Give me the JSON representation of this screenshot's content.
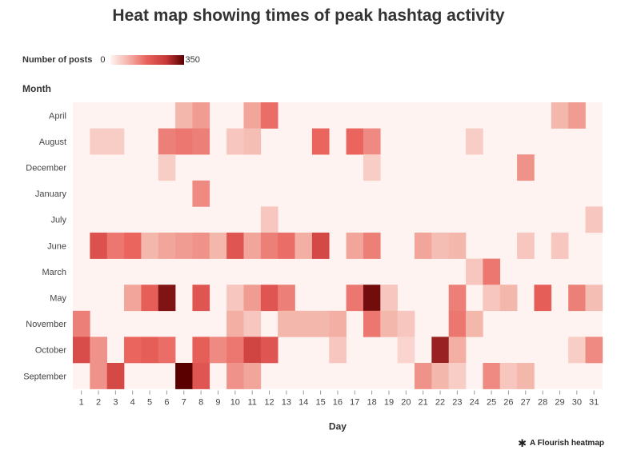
{
  "title": "Heat map showing times of peak hashtag activity",
  "legend": {
    "title": "Number of posts",
    "min": "0",
    "max": "350"
  },
  "footer": {
    "text": "A Flourish heatmap",
    "icon": "asterisk-icon"
  },
  "colors": {
    "empty": "#fff3f1",
    "scale": [
      "#fff3f1",
      "#f3b1a6",
      "#e8605a",
      "#c83a3a",
      "#5a0000"
    ]
  },
  "chart_data": {
    "type": "heatmap",
    "title": "Heat map showing times of peak hashtag activity",
    "xlabel": "Day",
    "ylabel": "Month",
    "value_label": "Number of posts",
    "value_range": [
      0,
      350
    ],
    "x": [
      1,
      2,
      3,
      4,
      5,
      6,
      7,
      8,
      9,
      10,
      11,
      12,
      13,
      14,
      15,
      16,
      17,
      18,
      19,
      20,
      21,
      22,
      23,
      24,
      25,
      26,
      27,
      28,
      29,
      30,
      31
    ],
    "y": [
      "April",
      "August",
      "December",
      "January",
      "July",
      "June",
      "March",
      "May",
      "November",
      "October",
      "September"
    ],
    "values": [
      [
        0,
        0,
        0,
        0,
        0,
        0,
        80,
        110,
        0,
        0,
        100,
        160,
        0,
        0,
        0,
        0,
        0,
        0,
        0,
        0,
        0,
        0,
        0,
        0,
        0,
        0,
        0,
        0,
        80,
        110,
        0
      ],
      [
        0,
        50,
        50,
        0,
        0,
        140,
        150,
        140,
        0,
        60,
        70,
        0,
        0,
        0,
        170,
        0,
        170,
        130,
        0,
        0,
        0,
        0,
        0,
        50,
        0,
        0,
        0,
        0,
        0,
        0,
        0
      ],
      [
        0,
        0,
        0,
        0,
        0,
        50,
        0,
        0,
        0,
        0,
        0,
        0,
        0,
        0,
        0,
        0,
        0,
        50,
        0,
        0,
        0,
        0,
        0,
        0,
        0,
        0,
        120,
        0,
        0,
        0,
        0
      ],
      [
        0,
        0,
        0,
        0,
        0,
        0,
        0,
        130,
        0,
        0,
        0,
        0,
        0,
        0,
        0,
        0,
        0,
        0,
        0,
        0,
        0,
        0,
        0,
        0,
        0,
        0,
        0,
        0,
        0,
        0,
        0
      ],
      [
        0,
        0,
        0,
        0,
        0,
        0,
        0,
        0,
        0,
        0,
        0,
        60,
        0,
        0,
        0,
        0,
        0,
        0,
        0,
        0,
        0,
        0,
        0,
        0,
        0,
        0,
        0,
        0,
        0,
        0,
        60
      ],
      [
        0,
        210,
        150,
        170,
        80,
        100,
        110,
        120,
        80,
        200,
        100,
        140,
        160,
        90,
        230,
        0,
        100,
        140,
        0,
        0,
        100,
        70,
        80,
        0,
        0,
        0,
        60,
        0,
        60,
        0,
        0
      ],
      [
        0,
        0,
        0,
        0,
        0,
        0,
        0,
        0,
        0,
        0,
        0,
        0,
        0,
        0,
        0,
        0,
        0,
        0,
        0,
        0,
        0,
        0,
        0,
        60,
        150,
        0,
        0,
        0,
        0,
        0,
        0
      ],
      [
        0,
        0,
        0,
        100,
        180,
        320,
        0,
        200,
        0,
        60,
        110,
        200,
        140,
        0,
        0,
        0,
        150,
        330,
        60,
        0,
        0,
        0,
        140,
        0,
        60,
        80,
        0,
        180,
        0,
        140,
        70
      ],
      [
        140,
        0,
        0,
        0,
        0,
        0,
        0,
        0,
        0,
        90,
        60,
        0,
        80,
        80,
        80,
        90,
        0,
        150,
        80,
        60,
        0,
        0,
        150,
        80,
        0,
        0,
        0,
        0,
        0,
        0,
        0
      ],
      [
        220,
        120,
        0,
        170,
        180,
        160,
        0,
        180,
        130,
        150,
        240,
        200,
        0,
        0,
        0,
        60,
        0,
        0,
        0,
        40,
        0,
        300,
        90,
        0,
        0,
        0,
        0,
        0,
        0,
        50,
        130
      ],
      [
        0,
        120,
        230,
        0,
        0,
        0,
        350,
        200,
        0,
        120,
        100,
        0,
        0,
        0,
        0,
        0,
        0,
        0,
        0,
        0,
        120,
        80,
        50,
        0,
        130,
        60,
        80,
        0,
        0,
        0,
        0
      ]
    ]
  }
}
